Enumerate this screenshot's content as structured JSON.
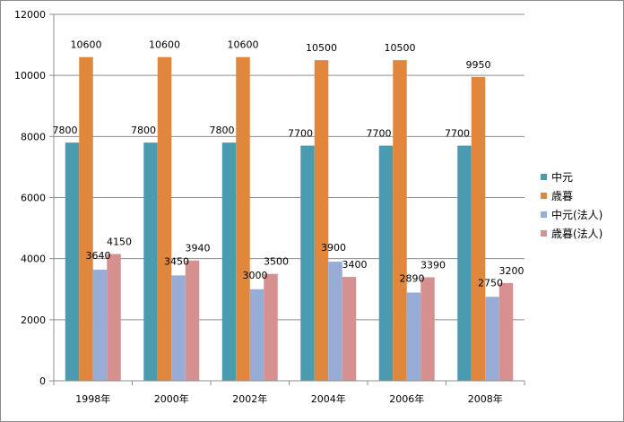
{
  "chart_data": {
    "type": "bar",
    "categories": [
      "1998年",
      "2000年",
      "2002年",
      "2004年",
      "2006年",
      "2008年"
    ],
    "series": [
      {
        "name": "中元",
        "color": "#4a9bb0",
        "values": [
          7800,
          7800,
          7800,
          7700,
          7700,
          7700
        ]
      },
      {
        "name": "歳暮",
        "color": "#e0873d",
        "values": [
          10600,
          10600,
          10600,
          10500,
          10500,
          9950
        ]
      },
      {
        "name": "中元(法人)",
        "color": "#98add6",
        "values": [
          3640,
          3450,
          3000,
          3900,
          2890,
          2750
        ]
      },
      {
        "name": "歳暮(法人)",
        "color": "#d6908f",
        "values": [
          4150,
          3940,
          3500,
          3400,
          3390,
          3200
        ]
      }
    ],
    "yticks": [
      "0",
      "2000",
      "4000",
      "6000",
      "8000",
      "10000",
      "12000"
    ],
    "ylim": [
      0,
      12000
    ],
    "grid": true,
    "legend": "right"
  }
}
